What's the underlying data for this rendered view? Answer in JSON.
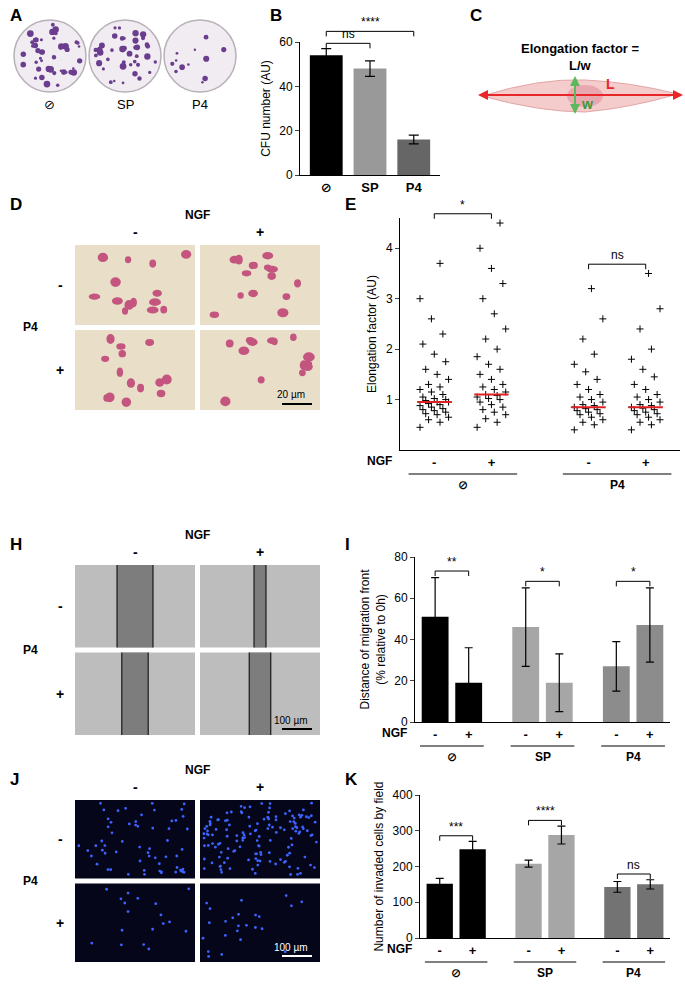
{
  "figure": {
    "A": {
      "letter": "A",
      "labels": [
        "⊘",
        "SP",
        "P4"
      ]
    },
    "C": {
      "letter": "C",
      "lines": [
        "Elongation factor =",
        "L/w"
      ],
      "length_label": "L",
      "width_label": "w"
    },
    "image_panels": [
      {
        "letter": "D",
        "column_header": "NGF",
        "columns": [
          "-",
          "+"
        ],
        "row_header": "P4",
        "rows": [
          "-",
          "+"
        ],
        "scale_bar": "20 µm"
      },
      {
        "letter": "H",
        "column_header": "NGF",
        "columns": [
          "-",
          "+"
        ],
        "row_header": "P4",
        "rows": [
          "-",
          "+"
        ],
        "scale_bar": "100 µm"
      },
      {
        "letter": "J",
        "column_header": "NGF",
        "columns": [
          "-",
          "+"
        ],
        "row_header": "P4",
        "rows": [
          "-",
          "+"
        ],
        "scale_bar": "100 µm"
      }
    ]
  },
  "chart_data": [
    {
      "panel": "B",
      "type": "bar",
      "categories": [
        "⊘",
        "SP",
        "P4"
      ],
      "values": [
        54,
        48,
        16
      ],
      "errors": [
        3,
        3.5,
        2
      ],
      "colors": [
        "#000000",
        "#999999",
        "#666666"
      ],
      "y_label": "CFU number (AU)",
      "ylim": [
        0,
        60
      ],
      "yticks": [
        0,
        20,
        40,
        60
      ],
      "comparisons": [
        {
          "from": 0,
          "to": 1,
          "label": "ns"
        },
        {
          "from": 0,
          "to": 2,
          "label": "****"
        }
      ]
    },
    {
      "panel": "E",
      "type": "scatter",
      "marker": "cross",
      "x_label": "NGF",
      "categories": [
        "-",
        "+"
      ],
      "series": [
        {
          "name": "⊘",
          "color": "#000000",
          "points": [
            [
              0.45,
              0.55,
              0.6,
              0.65,
              0.7,
              0.72,
              0.75,
              0.78,
              0.8,
              0.82,
              0.85,
              0.88,
              0.9,
              0.92,
              0.95,
              0.95,
              0.98,
              1.0,
              1.02,
              1.05,
              1.1,
              1.15,
              1.2,
              1.25,
              1.3,
              1.4,
              1.5,
              1.6,
              1.75,
              1.9,
              2.1,
              2.3,
              2.6,
              3.0,
              3.7
            ],
            [
              0.45,
              0.55,
              0.62,
              0.7,
              0.75,
              0.8,
              0.85,
              0.9,
              0.95,
              1.0,
              1.02,
              1.05,
              1.08,
              1.1,
              1.15,
              1.2,
              1.25,
              1.3,
              1.4,
              1.5,
              1.6,
              1.7,
              1.85,
              2.0,
              2.2,
              2.4,
              2.7,
              3.0,
              3.3,
              3.6,
              4.0,
              4.5
            ]
          ],
          "medians": [
            0.95,
            1.1
          ]
        },
        {
          "name": "P4",
          "color": "#000000",
          "points": [
            [
              0.4,
              0.5,
              0.55,
              0.6,
              0.65,
              0.7,
              0.72,
              0.75,
              0.78,
              0.8,
              0.82,
              0.85,
              0.88,
              0.9,
              0.95,
              1.0,
              1.05,
              1.1,
              1.2,
              1.3,
              1.4,
              1.55,
              1.7,
              1.9,
              2.2,
              2.6,
              3.2
            ],
            [
              0.4,
              0.5,
              0.55,
              0.6,
              0.65,
              0.7,
              0.72,
              0.75,
              0.78,
              0.8,
              0.83,
              0.85,
              0.88,
              0.9,
              0.95,
              1.0,
              1.05,
              1.1,
              1.2,
              1.3,
              1.45,
              1.6,
              1.8,
              2.0,
              2.4,
              2.8,
              3.5
            ]
          ],
          "medians": [
            0.85,
            0.85
          ]
        }
      ],
      "y_label": "Elongation factor (AU)",
      "ylim": [
        0,
        4.6
      ],
      "yticks": [
        1,
        2,
        3,
        4
      ],
      "comparisons": [
        {
          "from": 0,
          "to": 1,
          "label": "*"
        },
        {
          "from": 2,
          "to": 3,
          "label": "ns"
        }
      ]
    },
    {
      "panel": "I",
      "type": "bar",
      "x_label": "NGF",
      "categories": [
        "-",
        "+"
      ],
      "series": [
        {
          "name": "⊘",
          "color": "#000000",
          "values": [
            51,
            19
          ],
          "errors": [
            19,
            17
          ]
        },
        {
          "name": "SP",
          "color": "#a6a6a6",
          "values": [
            46,
            19
          ],
          "errors": [
            19,
            14
          ]
        },
        {
          "name": "P4",
          "color": "#8c8c8c",
          "values": [
            27,
            47
          ],
          "errors": [
            12,
            18
          ]
        }
      ],
      "y_label": [
        "Distance of migration front",
        "(% relative to 0h)"
      ],
      "ylim": [
        0,
        80
      ],
      "yticks": [
        0,
        20,
        40,
        60,
        80
      ],
      "comparisons": [
        {
          "from": 0,
          "to": 1,
          "label": "**"
        },
        {
          "from": 2,
          "to": 3,
          "label": "*"
        },
        {
          "from": 4,
          "to": 5,
          "label": "*"
        }
      ]
    },
    {
      "panel": "K",
      "type": "bar",
      "x_label": "NGF",
      "categories": [
        "-",
        "+"
      ],
      "series": [
        {
          "name": "⊘",
          "color": "#000000",
          "values": [
            152,
            248
          ],
          "errors": [
            15,
            22
          ]
        },
        {
          "name": "SP",
          "color": "#a6a6a6",
          "values": [
            208,
            288
          ],
          "errors": [
            10,
            25
          ]
        },
        {
          "name": "P4",
          "color": "#737373",
          "values": [
            143,
            150
          ],
          "errors": [
            15,
            13
          ]
        }
      ],
      "y_label": "Number of invaded cells by field",
      "ylim": [
        0,
        400
      ],
      "yticks": [
        0,
        100,
        200,
        300,
        400
      ],
      "comparisons": [
        {
          "from": 0,
          "to": 1,
          "label": "***"
        },
        {
          "from": 2,
          "to": 3,
          "label": "****"
        },
        {
          "from": 4,
          "to": 5,
          "label": "ns"
        }
      ]
    }
  ]
}
